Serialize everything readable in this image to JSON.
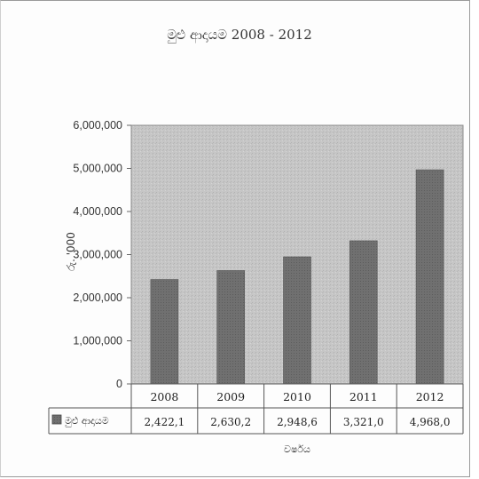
{
  "chart_data": {
    "type": "bar",
    "title": "මුළු ආදායම 2008 - 2012",
    "ylabel": "රු. '000",
    "xlabel": "වර්ෂය",
    "categories": [
      "2008",
      "2009",
      "2010",
      "2011",
      "2012"
    ],
    "yticks": [
      "6,000,000",
      "5,000,000",
      "4,000,000",
      "3,000,000",
      "2,000,000",
      "1,000,000",
      "0"
    ],
    "ylim": [
      0,
      6000000
    ],
    "series": [
      {
        "name": "මුළු ආදායම",
        "values": [
          2422100,
          2630200,
          2948600,
          3321000,
          4968000
        ],
        "table_labels": [
          "2,422,1",
          "2,630,2",
          "2,948,6",
          "3,321,0",
          "4,968,0"
        ]
      }
    ],
    "grid": false,
    "legend": "data-table",
    "colors": {
      "bar": "#6f6f6f",
      "plot_bg": "#c4c4c4"
    }
  }
}
